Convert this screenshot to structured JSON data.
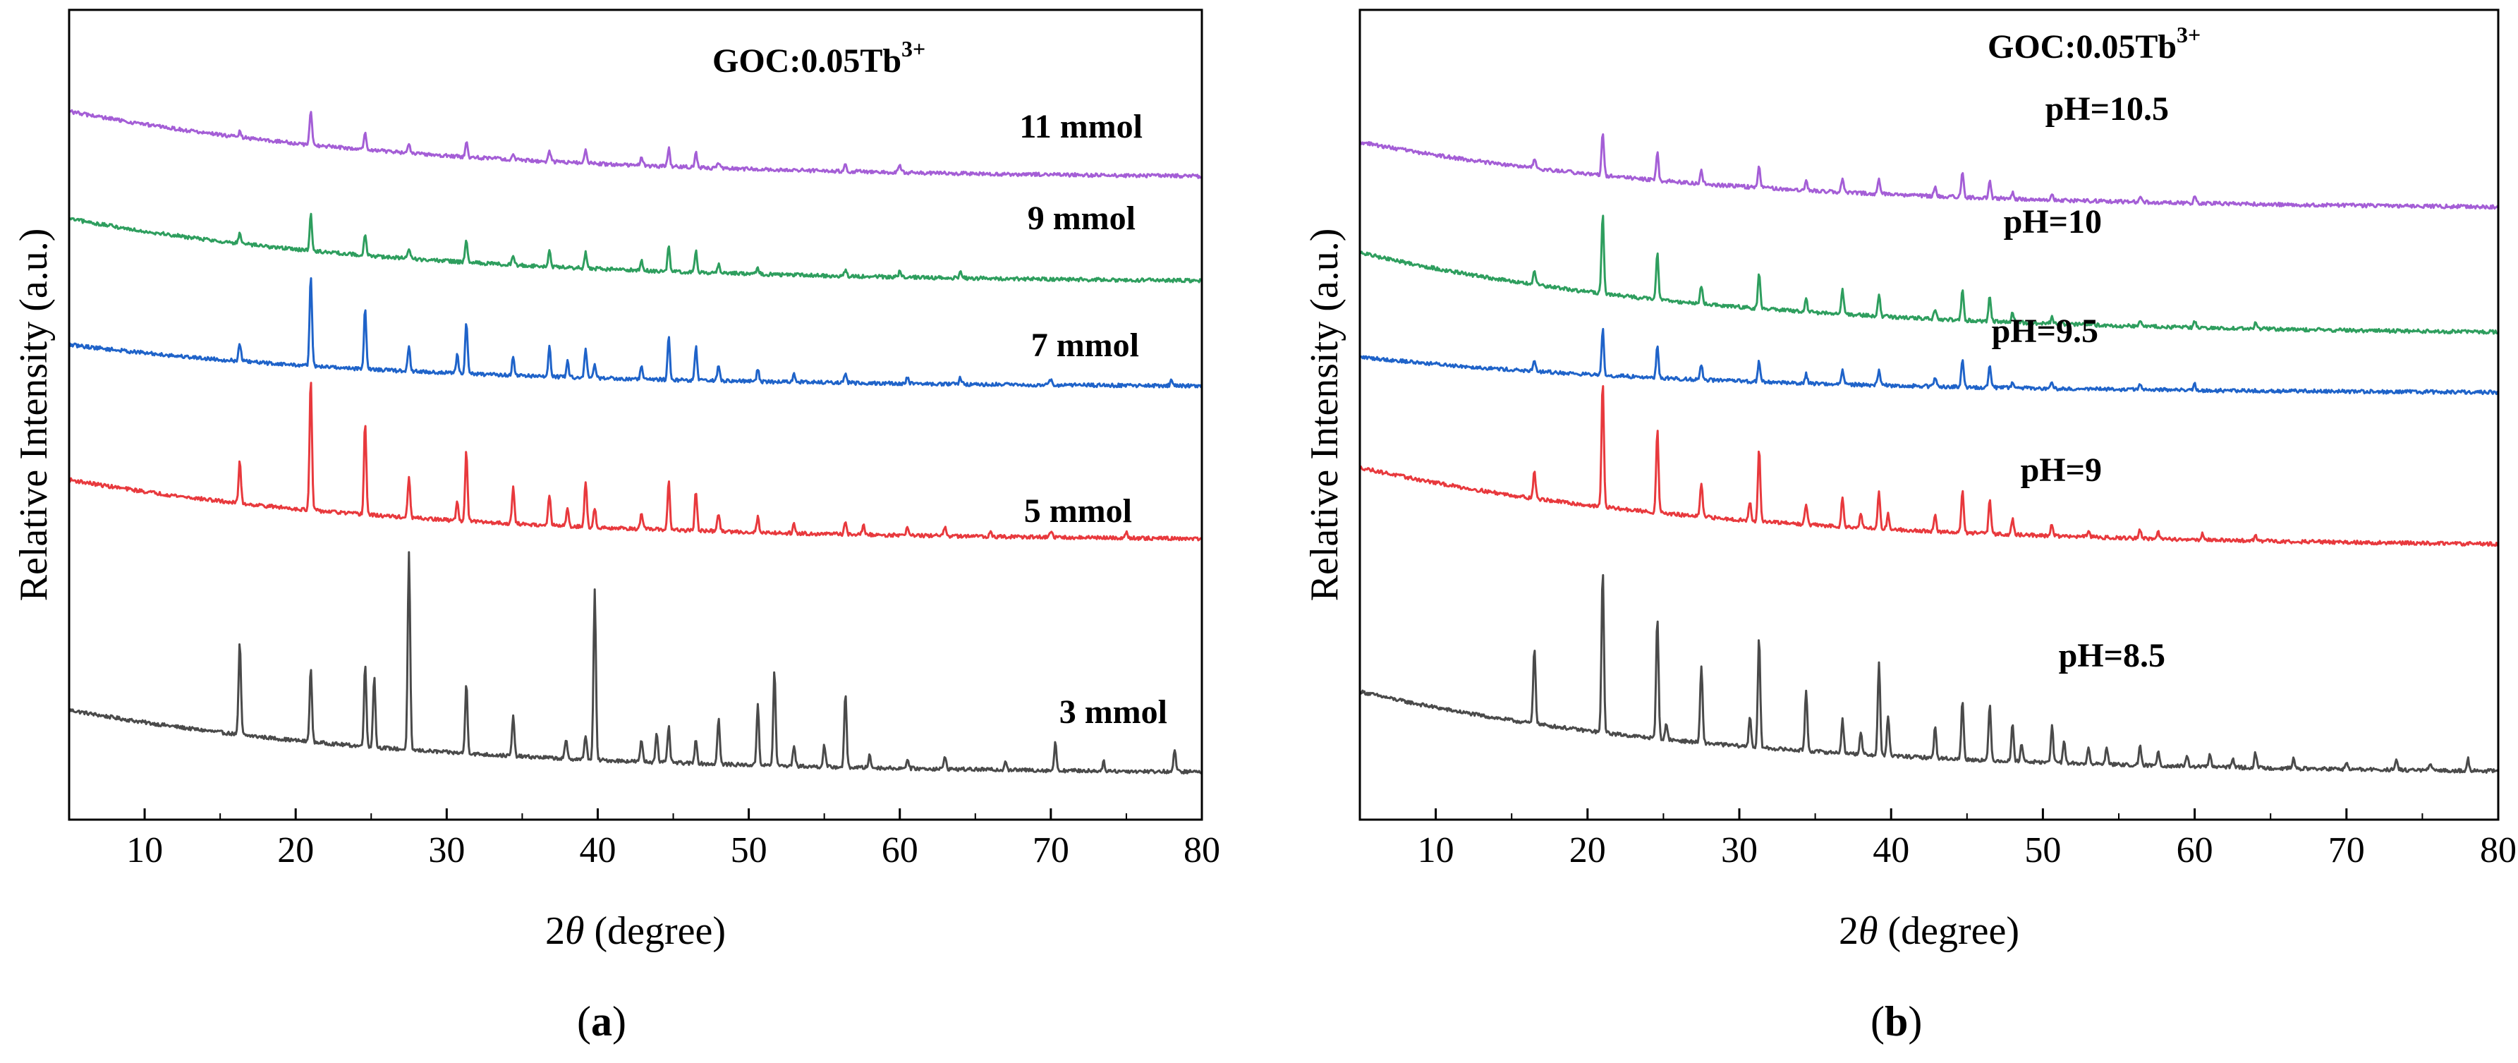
{
  "chart_data": [
    {
      "panel_label": "a",
      "type": "line",
      "title": "GOC:0.05Tb",
      "title_sup": "3+",
      "xlabel_prefix": "2",
      "xlabel_symbol": "θ",
      "xlabel_suffix": " (degree)",
      "ylabel": "Relative Intensity (a.u.)",
      "xlim": [
        5,
        80
      ],
      "xticks": [
        10,
        20,
        30,
        40,
        50,
        60,
        70,
        80
      ],
      "yticks_shown": false,
      "series": [
        {
          "name": "3 mmol",
          "color": "#4a4a4a",
          "baseline_start": 0.27,
          "baseline_end": 0.06,
          "noise": 0.006,
          "peaks": [
            [
              16.3,
              0.3
            ],
            [
              21.0,
              0.24
            ],
            [
              24.6,
              0.27
            ],
            [
              25.2,
              0.23
            ],
            [
              27.5,
              0.64
            ],
            [
              31.3,
              0.23
            ],
            [
              34.4,
              0.13
            ],
            [
              37.9,
              0.06
            ],
            [
              39.2,
              0.08
            ],
            [
              39.8,
              0.55
            ],
            [
              42.9,
              0.07
            ],
            [
              43.9,
              0.1
            ],
            [
              44.7,
              0.12
            ],
            [
              46.5,
              0.08
            ],
            [
              48.0,
              0.15
            ],
            [
              50.6,
              0.2
            ],
            [
              51.7,
              0.31
            ],
            [
              53.0,
              0.07
            ],
            [
              55.0,
              0.07
            ],
            [
              56.4,
              0.24
            ],
            [
              58.0,
              0.04
            ],
            [
              60.5,
              0.03
            ],
            [
              63.0,
              0.04
            ],
            [
              67.0,
              0.03
            ],
            [
              70.3,
              0.09
            ],
            [
              73.5,
              0.03
            ],
            [
              78.2,
              0.07
            ]
          ]
        },
        {
          "name": "5 mmol",
          "color": "#e8393d",
          "baseline_start": 1.02,
          "baseline_end": 0.82,
          "noise": 0.006,
          "peaks": [
            [
              16.3,
              0.14
            ],
            [
              21.0,
              0.43
            ],
            [
              24.6,
              0.3
            ],
            [
              27.5,
              0.13
            ],
            [
              30.7,
              0.06
            ],
            [
              31.3,
              0.23
            ],
            [
              34.4,
              0.12
            ],
            [
              36.8,
              0.1
            ],
            [
              38.0,
              0.06
            ],
            [
              39.2,
              0.15
            ],
            [
              39.8,
              0.06
            ],
            [
              42.9,
              0.05
            ],
            [
              44.7,
              0.16
            ],
            [
              46.5,
              0.13
            ],
            [
              48.0,
              0.06
            ],
            [
              50.6,
              0.05
            ],
            [
              53.0,
              0.03
            ],
            [
              56.4,
              0.04
            ],
            [
              57.6,
              0.03
            ],
            [
              60.5,
              0.03
            ],
            [
              63.0,
              0.03
            ],
            [
              66.0,
              0.02
            ],
            [
              70.0,
              0.02
            ],
            [
              75.0,
              0.02
            ]
          ]
        },
        {
          "name": "7 mmol",
          "color": "#1f63c9",
          "baseline_start": 1.46,
          "baseline_end": 1.32,
          "noise": 0.006,
          "peaks": [
            [
              16.3,
              0.06
            ],
            [
              21.0,
              0.3
            ],
            [
              24.6,
              0.2
            ],
            [
              27.5,
              0.08
            ],
            [
              30.7,
              0.06
            ],
            [
              31.3,
              0.17
            ],
            [
              34.4,
              0.06
            ],
            [
              36.8,
              0.1
            ],
            [
              38.0,
              0.05
            ],
            [
              39.2,
              0.1
            ],
            [
              39.8,
              0.04
            ],
            [
              42.9,
              0.04
            ],
            [
              44.7,
              0.14
            ],
            [
              46.5,
              0.11
            ],
            [
              48.0,
              0.05
            ],
            [
              50.6,
              0.04
            ],
            [
              53.0,
              0.03
            ],
            [
              56.4,
              0.03
            ],
            [
              60.5,
              0.02
            ],
            [
              64.0,
              0.02
            ],
            [
              70.0,
              0.02
            ],
            [
              78.0,
              0.02
            ]
          ]
        },
        {
          "name": "9 mmol",
          "color": "#2e9e5e",
          "baseline_start": 1.87,
          "baseline_end": 1.66,
          "noise": 0.006,
          "peaks": [
            [
              16.3,
              0.03
            ],
            [
              21.0,
              0.12
            ],
            [
              24.6,
              0.07
            ],
            [
              27.5,
              0.03
            ],
            [
              31.3,
              0.07
            ],
            [
              34.4,
              0.03
            ],
            [
              36.8,
              0.05
            ],
            [
              39.2,
              0.05
            ],
            [
              42.9,
              0.03
            ],
            [
              44.7,
              0.08
            ],
            [
              46.5,
              0.07
            ],
            [
              48.0,
              0.03
            ],
            [
              50.6,
              0.02
            ],
            [
              56.4,
              0.02
            ],
            [
              60.0,
              0.02
            ],
            [
              64.0,
              0.02
            ]
          ]
        },
        {
          "name": "11 mmol",
          "color": "#a45ed6",
          "baseline_start": 2.22,
          "baseline_end": 2.0,
          "noise": 0.006,
          "peaks": [
            [
              16.3,
              0.02
            ],
            [
              21.0,
              0.11
            ],
            [
              24.6,
              0.06
            ],
            [
              27.5,
              0.03
            ],
            [
              31.3,
              0.05
            ],
            [
              34.4,
              0.02
            ],
            [
              36.8,
              0.04
            ],
            [
              39.2,
              0.04
            ],
            [
              42.9,
              0.03
            ],
            [
              44.7,
              0.06
            ],
            [
              46.5,
              0.05
            ],
            [
              48.0,
              0.02
            ],
            [
              56.4,
              0.02
            ],
            [
              60.0,
              0.02
            ]
          ]
        }
      ]
    },
    {
      "panel_label": "b",
      "type": "line",
      "title": "GOC:0.05Tb",
      "title_sup": "3+",
      "xlabel_prefix": "2",
      "xlabel_symbol": "θ",
      "xlabel_suffix": " (degree)",
      "ylabel": "Relative Intensity (a.u.)",
      "xlim": [
        5,
        80
      ],
      "xticks": [
        10,
        20,
        30,
        40,
        50,
        60,
        70,
        80
      ],
      "yticks_shown": false,
      "series": [
        {
          "name": "pH=8.5",
          "color": "#4a4a4a",
          "baseline_start": 0.33,
          "baseline_end": 0.06,
          "noise": 0.006,
          "peaks": [
            [
              16.5,
              0.25
            ],
            [
              21.0,
              0.53
            ],
            [
              24.6,
              0.4
            ],
            [
              25.2,
              0.05
            ],
            [
              27.5,
              0.25
            ],
            [
              30.7,
              0.1
            ],
            [
              31.3,
              0.36
            ],
            [
              34.4,
              0.2
            ],
            [
              36.8,
              0.11
            ],
            [
              38.0,
              0.07
            ],
            [
              39.2,
              0.3
            ],
            [
              39.8,
              0.13
            ],
            [
              42.9,
              0.1
            ],
            [
              44.7,
              0.19
            ],
            [
              46.5,
              0.18
            ],
            [
              48.0,
              0.12
            ],
            [
              48.6,
              0.06
            ],
            [
              50.6,
              0.12
            ],
            [
              51.4,
              0.07
            ],
            [
              53.0,
              0.05
            ],
            [
              54.2,
              0.06
            ],
            [
              56.4,
              0.06
            ],
            [
              57.6,
              0.05
            ],
            [
              59.5,
              0.03
            ],
            [
              61.0,
              0.04
            ],
            [
              62.5,
              0.03
            ],
            [
              64.0,
              0.05
            ],
            [
              66.5,
              0.03
            ],
            [
              70.0,
              0.02
            ],
            [
              73.3,
              0.03
            ],
            [
              75.5,
              0.02
            ],
            [
              78.0,
              0.04
            ]
          ]
        },
        {
          "name": "pH=9",
          "color": "#e8393d",
          "baseline_start": 1.06,
          "baseline_end": 0.8,
          "noise": 0.006,
          "peaks": [
            [
              16.5,
              0.09
            ],
            [
              21.0,
              0.41
            ],
            [
              24.6,
              0.27
            ],
            [
              27.5,
              0.11
            ],
            [
              30.7,
              0.06
            ],
            [
              31.3,
              0.24
            ],
            [
              34.4,
              0.07
            ],
            [
              36.8,
              0.1
            ],
            [
              38.0,
              0.05
            ],
            [
              39.2,
              0.12
            ],
            [
              39.8,
              0.05
            ],
            [
              42.9,
              0.05
            ],
            [
              44.7,
              0.14
            ],
            [
              46.5,
              0.11
            ],
            [
              48.0,
              0.05
            ],
            [
              50.6,
              0.04
            ],
            [
              53.0,
              0.02
            ],
            [
              56.4,
              0.03
            ],
            [
              57.6,
              0.02
            ],
            [
              60.5,
              0.02
            ],
            [
              64.0,
              0.02
            ]
          ]
        },
        {
          "name": "pH=9.5",
          "color": "#1f63c9",
          "baseline_start": 1.42,
          "baseline_end": 1.3,
          "noise": 0.006,
          "peaks": [
            [
              16.5,
              0.03
            ],
            [
              21.0,
              0.15
            ],
            [
              24.6,
              0.1
            ],
            [
              27.5,
              0.05
            ],
            [
              31.3,
              0.07
            ],
            [
              34.4,
              0.03
            ],
            [
              36.8,
              0.05
            ],
            [
              39.2,
              0.05
            ],
            [
              42.9,
              0.03
            ],
            [
              44.7,
              0.09
            ],
            [
              46.5,
              0.07
            ],
            [
              48.0,
              0.02
            ],
            [
              50.6,
              0.02
            ],
            [
              56.4,
              0.02
            ],
            [
              60.0,
              0.02
            ]
          ]
        },
        {
          "name": "pH=10",
          "color": "#2e9e5e",
          "baseline_start": 1.76,
          "baseline_end": 1.49,
          "noise": 0.006,
          "peaks": [
            [
              16.5,
              0.05
            ],
            [
              21.0,
              0.26
            ],
            [
              24.6,
              0.15
            ],
            [
              27.5,
              0.06
            ],
            [
              31.3,
              0.12
            ],
            [
              34.4,
              0.04
            ],
            [
              36.8,
              0.08
            ],
            [
              39.2,
              0.07
            ],
            [
              42.9,
              0.03
            ],
            [
              44.7,
              0.1
            ],
            [
              46.5,
              0.08
            ],
            [
              48.0,
              0.03
            ],
            [
              50.6,
              0.02
            ],
            [
              56.4,
              0.02
            ],
            [
              60.0,
              0.02
            ],
            [
              64.0,
              0.02
            ]
          ]
        },
        {
          "name": "pH=10.5",
          "color": "#a45ed6",
          "baseline_start": 2.12,
          "baseline_end": 1.9,
          "noise": 0.006,
          "peaks": [
            [
              16.5,
              0.03
            ],
            [
              21.0,
              0.14
            ],
            [
              24.6,
              0.09
            ],
            [
              27.5,
              0.04
            ],
            [
              31.3,
              0.07
            ],
            [
              34.4,
              0.03
            ],
            [
              36.8,
              0.05
            ],
            [
              39.2,
              0.05
            ],
            [
              42.9,
              0.03
            ],
            [
              44.7,
              0.08
            ],
            [
              46.5,
              0.06
            ],
            [
              48.0,
              0.02
            ],
            [
              50.6,
              0.02
            ],
            [
              56.4,
              0.02
            ],
            [
              60.0,
              0.02
            ]
          ]
        }
      ]
    }
  ]
}
